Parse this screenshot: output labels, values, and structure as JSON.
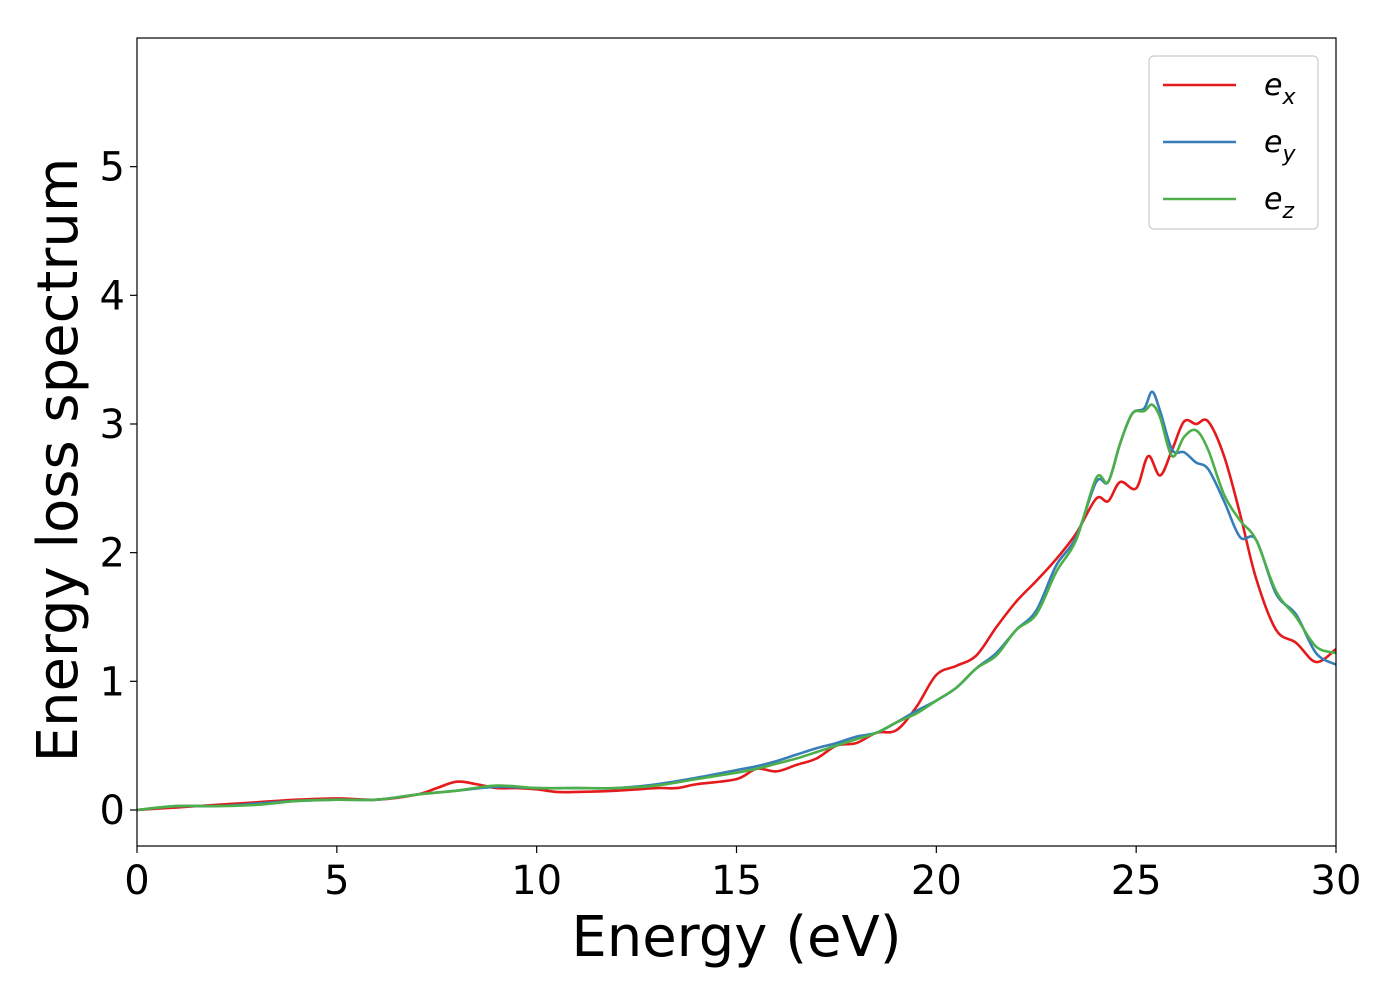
{
  "chart_data": {
    "type": "line",
    "title": "",
    "xlabel": "Energy (eV)",
    "ylabel": "Energy loss spectrum",
    "xlim": [
      0,
      30
    ],
    "ylim": [
      -0.28,
      6.0
    ],
    "xticks": [
      0,
      5,
      10,
      15,
      20,
      25,
      30
    ],
    "yticks": [
      0,
      1,
      2,
      3,
      4,
      5
    ],
    "grid": false,
    "legend_position": "top-right",
    "series": [
      {
        "name": "e",
        "subscript": "x",
        "color": "#e41a1c",
        "x": [
          0,
          1,
          2,
          3,
          4,
          5,
          6,
          7,
          7.5,
          8,
          8.5,
          9,
          9.5,
          10,
          10.5,
          11,
          12,
          13,
          13.5,
          14,
          15,
          15.5,
          16,
          16.5,
          17,
          17.5,
          18,
          18.5,
          19,
          19.5,
          20,
          20.5,
          21,
          21.5,
          22,
          22.5,
          23,
          23.5,
          24,
          24.3,
          24.6,
          25,
          25.3,
          25.6,
          25.9,
          26.2,
          26.5,
          26.8,
          27.2,
          27.6,
          28,
          28.5,
          29,
          29.5,
          30
        ],
        "y": [
          0.0,
          0.02,
          0.04,
          0.06,
          0.08,
          0.09,
          0.08,
          0.12,
          0.17,
          0.22,
          0.2,
          0.17,
          0.17,
          0.16,
          0.14,
          0.14,
          0.15,
          0.17,
          0.17,
          0.2,
          0.24,
          0.32,
          0.3,
          0.35,
          0.4,
          0.5,
          0.52,
          0.6,
          0.62,
          0.8,
          1.05,
          1.12,
          1.2,
          1.42,
          1.62,
          1.78,
          1.95,
          2.15,
          2.42,
          2.4,
          2.55,
          2.5,
          2.75,
          2.6,
          2.8,
          3.02,
          3.0,
          3.02,
          2.75,
          2.3,
          1.8,
          1.4,
          1.3,
          1.15,
          1.25
        ]
      },
      {
        "name": "e",
        "subscript": "y",
        "color": "#377eb8",
        "x": [
          0,
          1,
          2,
          3,
          4,
          5,
          6,
          7,
          8,
          9,
          10,
          11,
          12,
          13,
          14,
          15,
          15.5,
          16,
          16.5,
          17,
          17.5,
          18,
          18.5,
          19,
          19.5,
          20,
          20.5,
          21,
          21.5,
          22,
          22.5,
          23,
          23.5,
          24,
          24.3,
          24.6,
          24.9,
          25.2,
          25.4,
          25.6,
          25.9,
          26.2,
          26.5,
          26.8,
          27.2,
          27.6,
          28,
          28.5,
          29,
          29.5,
          30
        ],
        "y": [
          0.0,
          0.03,
          0.03,
          0.05,
          0.07,
          0.08,
          0.08,
          0.12,
          0.15,
          0.18,
          0.17,
          0.17,
          0.17,
          0.2,
          0.25,
          0.31,
          0.34,
          0.38,
          0.43,
          0.48,
          0.52,
          0.57,
          0.6,
          0.68,
          0.77,
          0.85,
          0.95,
          1.1,
          1.22,
          1.4,
          1.55,
          1.9,
          2.12,
          2.55,
          2.55,
          2.85,
          3.08,
          3.12,
          3.25,
          3.1,
          2.8,
          2.78,
          2.7,
          2.65,
          2.4,
          2.12,
          2.1,
          1.68,
          1.52,
          1.22,
          1.13
        ]
      },
      {
        "name": "e",
        "subscript": "z",
        "color": "#4daf4a",
        "x": [
          0,
          1,
          2,
          3,
          4,
          5,
          6,
          7,
          8,
          9,
          10,
          11,
          12,
          13,
          14,
          15,
          15.5,
          16,
          16.5,
          17,
          17.5,
          18,
          18.5,
          19,
          19.5,
          20,
          20.5,
          21,
          21.5,
          22,
          22.5,
          23,
          23.5,
          24,
          24.3,
          24.6,
          24.9,
          25.2,
          25.4,
          25.6,
          25.9,
          26.2,
          26.5,
          26.8,
          27.2,
          27.6,
          28,
          28.5,
          29,
          29.5,
          30
        ],
        "y": [
          0.0,
          0.03,
          0.03,
          0.04,
          0.07,
          0.08,
          0.08,
          0.12,
          0.15,
          0.19,
          0.17,
          0.17,
          0.17,
          0.19,
          0.24,
          0.29,
          0.32,
          0.36,
          0.4,
          0.45,
          0.5,
          0.55,
          0.6,
          0.68,
          0.75,
          0.85,
          0.95,
          1.1,
          1.2,
          1.4,
          1.52,
          1.85,
          2.1,
          2.58,
          2.55,
          2.85,
          3.08,
          3.1,
          3.15,
          3.05,
          2.75,
          2.9,
          2.95,
          2.8,
          2.45,
          2.25,
          2.1,
          1.7,
          1.5,
          1.27,
          1.22
        ]
      }
    ]
  }
}
